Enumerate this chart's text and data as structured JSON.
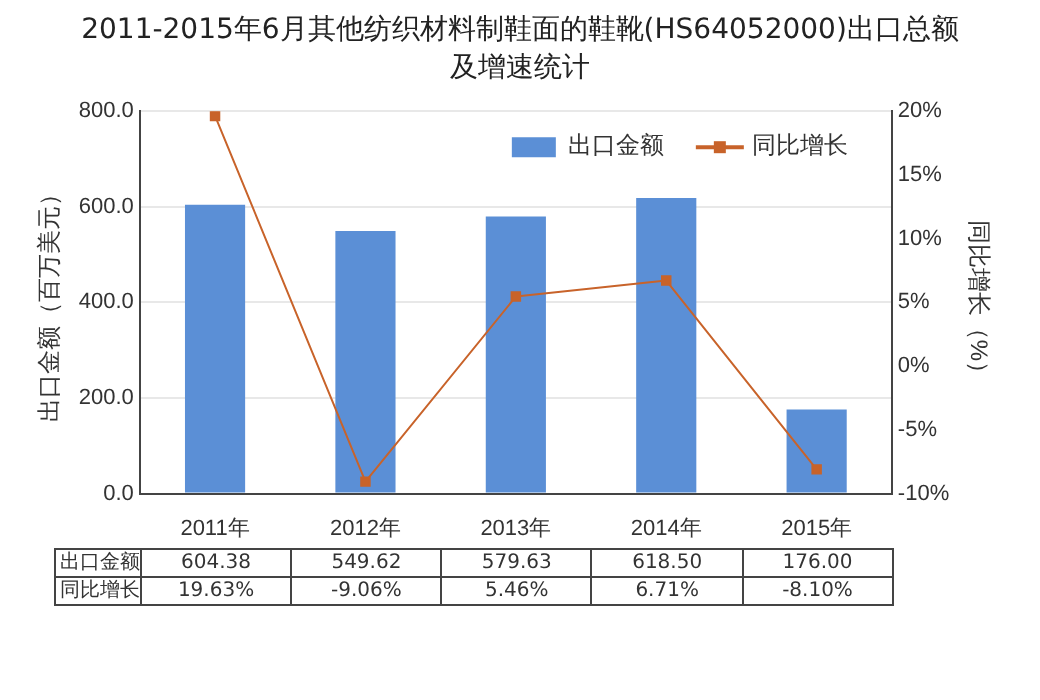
{
  "chart_data": {
    "type": "bar",
    "title": "2011-2015年6月其他纺织材料制鞋面的鞋靴(HS64052000)出口总额及增速统计",
    "categories": [
      "2011年",
      "2012年",
      "2013年",
      "2014年",
      "2015年"
    ],
    "series": [
      {
        "name": "出口金额",
        "color": "#5b8fd6",
        "values": [
          604.38,
          549.62,
          579.63,
          618.5,
          176
        ],
        "value_labels": [
          "604.38",
          "549.62",
          "579.63",
          "618.50",
          "176.00"
        ]
      },
      {
        "name": "同比增长",
        "type": "line",
        "axis": "y2",
        "color": "#c8632a",
        "values": [
          19.63,
          -9.06,
          5.46,
          6.71,
          -8.1
        ],
        "value_labels": [
          "19.63%",
          "-9.06%",
          "5.46%",
          "6.71%",
          "-8.10%"
        ]
      }
    ],
    "ylabel": "出口金额（百万美元）",
    "y2label": "同比增长（%）",
    "ylim": [
      0,
      800
    ],
    "yticks": [
      {
        "value": 0,
        "label": "0.0"
      },
      {
        "value": 200,
        "label": "200.0"
      },
      {
        "value": 400,
        "label": "400.0"
      },
      {
        "value": 600,
        "label": "600.0"
      },
      {
        "value": 800,
        "label": "800.0"
      }
    ],
    "y2lim": [
      -10,
      20
    ],
    "y2ticks": [
      {
        "value": -10,
        "label": "-10%"
      },
      {
        "value": -5,
        "label": "-5%"
      },
      {
        "value": 0,
        "label": "0%"
      },
      {
        "value": 5,
        "label": "5%"
      },
      {
        "value": 10,
        "label": "10%"
      },
      {
        "value": 15,
        "label": "15%"
      },
      {
        "value": 20,
        "label": "20%"
      }
    ],
    "grid": "y",
    "legend": "top right",
    "marker": "square"
  }
}
